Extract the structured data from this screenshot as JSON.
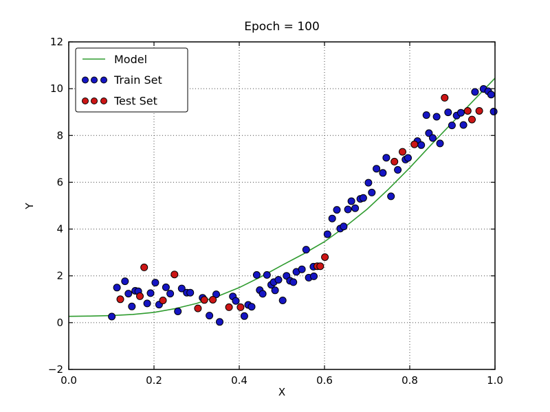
{
  "chart_data": {
    "type": "scatter",
    "title": "Epoch = 100",
    "xlabel": "X",
    "ylabel": "Y",
    "xlim": [
      0.0,
      1.0
    ],
    "ylim": [
      -2,
      12
    ],
    "x_tick_values": [
      0.0,
      0.2,
      0.4,
      0.6,
      0.8,
      1.0
    ],
    "x_tick_labels": [
      "0.0",
      "0.2",
      "0.4",
      "0.6",
      "0.8",
      "1.0"
    ],
    "y_tick_values": [
      -2,
      0,
      2,
      4,
      6,
      8,
      10,
      12
    ],
    "y_tick_labels": [
      "−2",
      "0",
      "2",
      "4",
      "6",
      "8",
      "10",
      "12"
    ],
    "grid": "dotted",
    "grid_x_values": [
      0.2,
      0.4,
      0.6,
      0.8
    ],
    "grid_y_values": [
      0,
      2,
      4,
      6,
      8,
      10
    ],
    "legend_position": "upper left",
    "colors": {
      "model_line": "#2e9b2e",
      "train_fill": "#1515c3",
      "test_fill": "#cc1616",
      "marker_edge": "#000000",
      "axes": "#000000"
    },
    "series": [
      {
        "name": "Model",
        "type": "line",
        "color": "#2e9b2e",
        "points": [
          [
            0.0,
            0.27
          ],
          [
            0.05,
            0.28
          ],
          [
            0.1,
            0.3
          ],
          [
            0.15,
            0.35
          ],
          [
            0.2,
            0.44
          ],
          [
            0.25,
            0.6
          ],
          [
            0.3,
            0.82
          ],
          [
            0.35,
            1.13
          ],
          [
            0.4,
            1.5
          ],
          [
            0.45,
            1.95
          ],
          [
            0.5,
            2.45
          ],
          [
            0.55,
            2.93
          ],
          [
            0.6,
            3.46
          ],
          [
            0.65,
            4.12
          ],
          [
            0.7,
            4.85
          ],
          [
            0.75,
            5.7
          ],
          [
            0.8,
            6.62
          ],
          [
            0.85,
            7.6
          ],
          [
            0.9,
            8.55
          ],
          [
            0.95,
            9.5
          ],
          [
            1.0,
            10.45
          ]
        ]
      },
      {
        "name": "Train Set",
        "type": "scatter",
        "color": "#1515c3",
        "points": [
          [
            0.101,
            0.26
          ],
          [
            0.113,
            1.5
          ],
          [
            0.132,
            1.77
          ],
          [
            0.14,
            1.24
          ],
          [
            0.148,
            0.69
          ],
          [
            0.156,
            1.36
          ],
          [
            0.163,
            1.34
          ],
          [
            0.184,
            0.82
          ],
          [
            0.192,
            1.26
          ],
          [
            0.203,
            1.71
          ],
          [
            0.212,
            0.77
          ],
          [
            0.228,
            1.51
          ],
          [
            0.238,
            1.24
          ],
          [
            0.256,
            0.48
          ],
          [
            0.265,
            1.46
          ],
          [
            0.277,
            1.28
          ],
          [
            0.285,
            1.28
          ],
          [
            0.314,
            1.06
          ],
          [
            0.33,
            0.3
          ],
          [
            0.346,
            1.21
          ],
          [
            0.354,
            0.03
          ],
          [
            0.385,
            1.12
          ],
          [
            0.392,
            0.93
          ],
          [
            0.412,
            0.28
          ],
          [
            0.421,
            0.76
          ],
          [
            0.429,
            0.68
          ],
          [
            0.441,
            2.04
          ],
          [
            0.448,
            1.39
          ],
          [
            0.455,
            1.23
          ],
          [
            0.465,
            2.04
          ],
          [
            0.475,
            1.62
          ],
          [
            0.481,
            1.73
          ],
          [
            0.484,
            1.38
          ],
          [
            0.492,
            1.83
          ],
          [
            0.502,
            0.95
          ],
          [
            0.511,
            2.0
          ],
          [
            0.519,
            1.79
          ],
          [
            0.527,
            1.73
          ],
          [
            0.534,
            2.17
          ],
          [
            0.547,
            2.28
          ],
          [
            0.557,
            3.12
          ],
          [
            0.563,
            1.92
          ],
          [
            0.574,
            2.39
          ],
          [
            0.575,
            1.98
          ],
          [
            0.607,
            3.78
          ],
          [
            0.618,
            4.45
          ],
          [
            0.629,
            4.82
          ],
          [
            0.637,
            4.02
          ],
          [
            0.645,
            4.11
          ],
          [
            0.655,
            4.84
          ],
          [
            0.663,
            5.19
          ],
          [
            0.672,
            4.89
          ],
          [
            0.684,
            5.29
          ],
          [
            0.691,
            5.33
          ],
          [
            0.703,
            5.98
          ],
          [
            0.711,
            5.56
          ],
          [
            0.722,
            6.58
          ],
          [
            0.737,
            6.4
          ],
          [
            0.745,
            7.05
          ],
          [
            0.756,
            5.4
          ],
          [
            0.772,
            6.53
          ],
          [
            0.79,
            6.97
          ],
          [
            0.796,
            7.04
          ],
          [
            0.818,
            7.76
          ],
          [
            0.827,
            7.59
          ],
          [
            0.839,
            8.87
          ],
          [
            0.845,
            8.1
          ],
          [
            0.854,
            7.89
          ],
          [
            0.863,
            8.8
          ],
          [
            0.871,
            7.66
          ],
          [
            0.89,
            8.99
          ],
          [
            0.899,
            8.43
          ],
          [
            0.91,
            8.85
          ],
          [
            0.92,
            8.97
          ],
          [
            0.926,
            8.45
          ],
          [
            0.953,
            9.86
          ],
          [
            0.973,
            9.99
          ],
          [
            0.984,
            9.89
          ],
          [
            0.991,
            9.75
          ],
          [
            0.997,
            9.02
          ]
        ]
      },
      {
        "name": "Test Set",
        "type": "scatter",
        "color": "#cc1616",
        "points": [
          [
            0.121,
            1.0
          ],
          [
            0.167,
            1.13
          ],
          [
            0.177,
            2.36
          ],
          [
            0.221,
            0.95
          ],
          [
            0.248,
            2.06
          ],
          [
            0.303,
            0.61
          ],
          [
            0.318,
            0.97
          ],
          [
            0.338,
            0.98
          ],
          [
            0.376,
            0.66
          ],
          [
            0.403,
            0.66
          ],
          [
            0.583,
            2.41
          ],
          [
            0.59,
            2.41
          ],
          [
            0.601,
            2.8
          ],
          [
            0.764,
            6.88
          ],
          [
            0.783,
            7.3
          ],
          [
            0.811,
            7.62
          ],
          [
            0.882,
            9.61
          ],
          [
            0.936,
            9.05
          ],
          [
            0.946,
            8.68
          ],
          [
            0.963,
            9.05
          ]
        ]
      }
    ]
  }
}
